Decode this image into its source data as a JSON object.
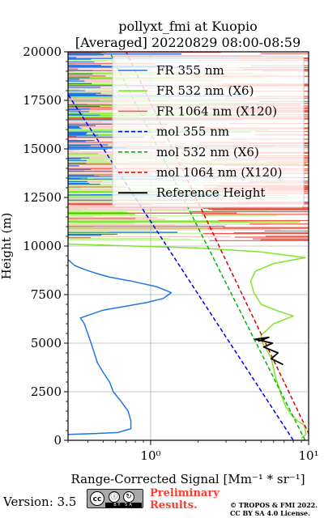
{
  "chart_data": {
    "type": "line",
    "title_line1": "pollyxt_fmi at Kuopio",
    "title_line2": "[Averaged] 20220829 08:00-08:59",
    "xlabel": "Range-Corrected Signal [Mm⁻¹ * sr⁻¹]",
    "ylabel": "Height (m)",
    "xscale": "log",
    "xlim": [
      0.3,
      10
    ],
    "ylim": [
      0,
      20000
    ],
    "x_tick_labels": [
      "10⁰",
      "10¹"
    ],
    "x_tick_values": [
      1,
      10
    ],
    "y_ticks": [
      0,
      2500,
      5000,
      7500,
      10000,
      12500,
      15000,
      17500,
      20000
    ],
    "y_tick_labels": [
      "0",
      "2500",
      "5000",
      "7500",
      "10000",
      "12500",
      "15000",
      "17500",
      "20000"
    ],
    "grid": true,
    "legend_position": "upper-right",
    "series": [
      {
        "name": "FR 355 nm",
        "color": "#1f77e4",
        "style": "solid",
        "points": [
          [
            0.3,
            300
          ],
          [
            0.45,
            350
          ],
          [
            0.62,
            400
          ],
          [
            0.75,
            600
          ],
          [
            0.75,
            1000
          ],
          [
            0.72,
            1500
          ],
          [
            0.65,
            2000
          ],
          [
            0.58,
            2500
          ],
          [
            0.55,
            3000
          ],
          [
            0.5,
            3500
          ],
          [
            0.46,
            4000
          ],
          [
            0.44,
            4500
          ],
          [
            0.42,
            5000
          ],
          [
            0.4,
            5500
          ],
          [
            0.38,
            6000
          ],
          [
            0.36,
            6300
          ],
          [
            0.5,
            6700
          ],
          [
            0.75,
            6950
          ],
          [
            0.95,
            7100
          ],
          [
            1.2,
            7300
          ],
          [
            1.35,
            7600
          ],
          [
            1.1,
            7900
          ],
          [
            0.75,
            8200
          ],
          [
            0.55,
            8400
          ],
          [
            0.45,
            8600
          ],
          [
            0.38,
            8800
          ],
          [
            0.33,
            9000
          ],
          [
            0.3,
            9300
          ]
        ]
      },
      {
        "name": "FR 532 nm (X6)",
        "color": "#7fe52b",
        "style": "solid",
        "points": [
          [
            9,
            100
          ],
          [
            9.6,
            300
          ],
          [
            9.5,
            600
          ],
          [
            9.3,
            800
          ],
          [
            8.5,
            1000
          ],
          [
            7.8,
            1300
          ],
          [
            7.2,
            1700
          ],
          [
            6.8,
            2200
          ],
          [
            6.5,
            2700
          ],
          [
            6.2,
            3200
          ],
          [
            6,
            3700
          ],
          [
            5.8,
            4200
          ],
          [
            5.4,
            4700
          ],
          [
            5.1,
            5000
          ],
          [
            5.0,
            5400
          ],
          [
            6.0,
            6000
          ],
          [
            8.0,
            6400
          ],
          [
            6.2,
            6700
          ],
          [
            5.0,
            7000
          ],
          [
            4.5,
            7600
          ],
          [
            4.3,
            8200
          ],
          [
            4.6,
            8700
          ],
          [
            6.0,
            9100
          ],
          [
            9.5,
            9400
          ],
          [
            5.0,
            9700
          ],
          [
            2.0,
            9900
          ],
          [
            0.3,
            10100
          ]
        ]
      },
      {
        "name": "FR 1064 nm (X120)",
        "color": "#f5564a",
        "style": "solid",
        "points": []
      },
      {
        "name": "mol 355 nm",
        "color": "#0000ee",
        "style": "dashed",
        "points": [
          [
            8,
            0
          ],
          [
            0.3,
            17800
          ]
        ]
      },
      {
        "name": "mol 532 nm (X6)",
        "color": "#00b400",
        "style": "dashed",
        "points": [
          [
            9.5,
            0
          ],
          [
            0.55,
            20000
          ]
        ]
      },
      {
        "name": "mol 1064 nm (X120)",
        "color": "#e00000",
        "style": "dashed",
        "points": [
          [
            10.5,
            0
          ],
          [
            0.7,
            20000
          ]
        ]
      },
      {
        "name": "Reference Height",
        "color": "#000000",
        "style": "solid",
        "points": [
          [
            6.9,
            3900
          ],
          [
            5.8,
            4200
          ],
          [
            6.4,
            4500
          ],
          [
            5.2,
            4800
          ],
          [
            5.9,
            5000
          ],
          [
            4.6,
            5200
          ],
          [
            5.6,
            5300
          ],
          [
            4.8,
            5100
          ]
        ]
      }
    ]
  },
  "footer": {
    "version": "Version: 3.5",
    "preliminary_line1": "Preliminary",
    "preliminary_line2": "Results.",
    "copyright_line1": "© TROPOS & FMI 2022.",
    "copyright_line2": "CC BY SA 4.0 License.",
    "badge_cc": "cc",
    "badge_by": "ⓘ",
    "badge_sa": "↻",
    "badge_strip": "BY SA"
  }
}
